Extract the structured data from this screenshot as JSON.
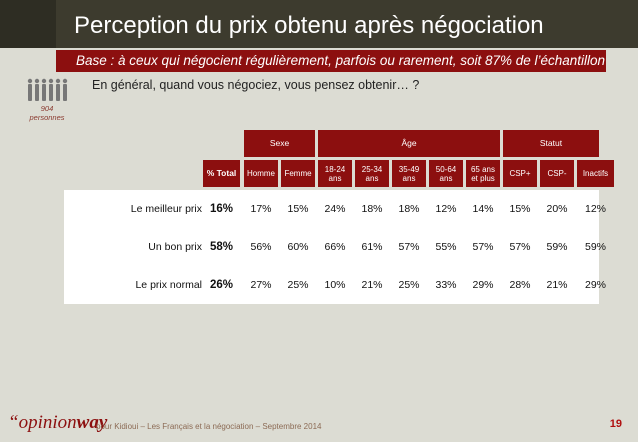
{
  "header": {
    "title": "Perception du prix obtenu après négociation",
    "subtitle": "Base : à ceux qui négocient régulièrement, parfois ou rarement, soit 87% de l’échantillon"
  },
  "sample": {
    "icon": "people-icon",
    "count": "904",
    "unit": "personnes"
  },
  "question": "En général, quand vous négociez, vous pensez obtenir… ?",
  "table": {
    "groups": {
      "sexe": "Sexe",
      "age": "Âge",
      "statut": "Statut"
    },
    "columns": [
      {
        "l1": "% Total",
        "l2": ""
      },
      {
        "l1": "Homme",
        "l2": ""
      },
      {
        "l1": "Femme",
        "l2": ""
      },
      {
        "l1": "18-24",
        "l2": "ans"
      },
      {
        "l1": "25-34",
        "l2": "ans"
      },
      {
        "l1": "35-49",
        "l2": "ans"
      },
      {
        "l1": "50-64",
        "l2": "ans"
      },
      {
        "l1": "65 ans",
        "l2": "et plus"
      },
      {
        "l1": "CSP+",
        "l2": ""
      },
      {
        "l1": "CSP-",
        "l2": ""
      },
      {
        "l1": "Inactifs",
        "l2": ""
      }
    ],
    "rows": [
      {
        "label": "Le meilleur prix",
        "values": [
          "16%",
          "17%",
          "15%",
          "24%",
          "18%",
          "18%",
          "12%",
          "14%",
          "15%",
          "20%",
          "12%"
        ]
      },
      {
        "label": "Un bon prix",
        "values": [
          "58%",
          "56%",
          "60%",
          "66%",
          "61%",
          "57%",
          "55%",
          "57%",
          "57%",
          "59%",
          "59%"
        ]
      },
      {
        "label": "Le prix normal",
        "values": [
          "26%",
          "27%",
          "25%",
          "10%",
          "21%",
          "25%",
          "33%",
          "29%",
          "28%",
          "21%",
          "29%"
        ]
      }
    ]
  },
  "footer": {
    "brand_quote": "“",
    "brand_a": "opinion",
    "brand_b": "way",
    "text": "pour Kidioui – Les Français et la négociation – Septembre 2014",
    "page": "19"
  },
  "colors": {
    "primary": "#8c0f0f",
    "titlebar": "#3d3b2e",
    "background": "#dcdcd3"
  }
}
